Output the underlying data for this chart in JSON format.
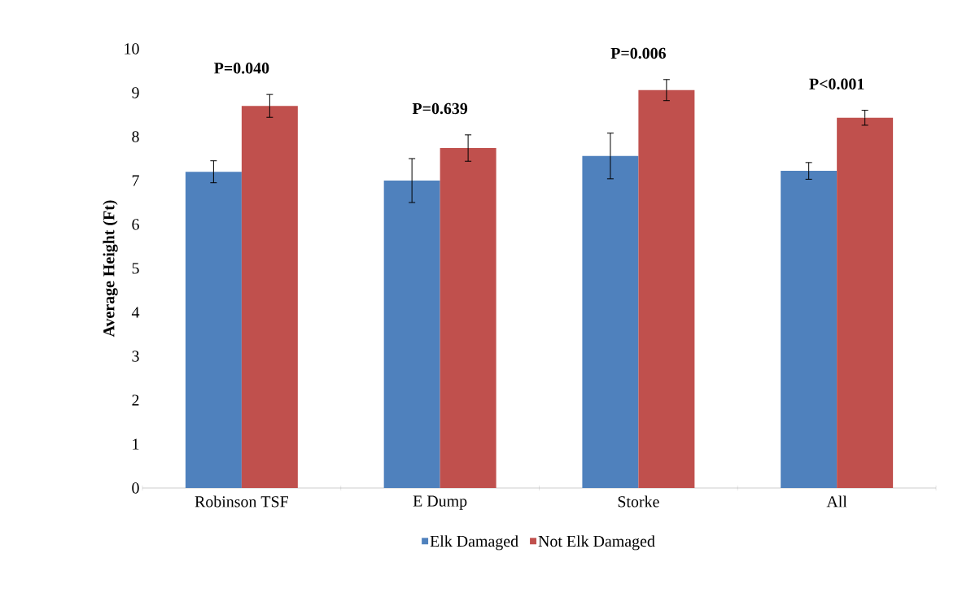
{
  "chart_data": {
    "type": "bar",
    "ylabel": "Average Height (Ft)",
    "categories": [
      "Robinson TSF",
      "E Dump",
      "Storke",
      "All"
    ],
    "series": [
      {
        "name": "Elk Damaged",
        "color": "#4f81bd",
        "values": [
          7.2,
          7.0,
          7.56,
          7.22
        ],
        "errors": [
          0.25,
          0.5,
          0.52,
          0.19
        ]
      },
      {
        "name": "Not Elk Damaged",
        "color": "#c0504d",
        "values": [
          8.7,
          7.74,
          9.06,
          8.43
        ],
        "errors": [
          0.26,
          0.3,
          0.24,
          0.17
        ]
      }
    ],
    "ylim": [
      0,
      10
    ],
    "yticks": [
      0,
      1,
      2,
      3,
      4,
      5,
      6,
      7,
      8,
      9,
      10
    ],
    "annotations": [
      "P=0.040",
      "P=0.639",
      "P=0.006",
      "P<0.001"
    ],
    "grid": false,
    "legend": "bottom"
  }
}
